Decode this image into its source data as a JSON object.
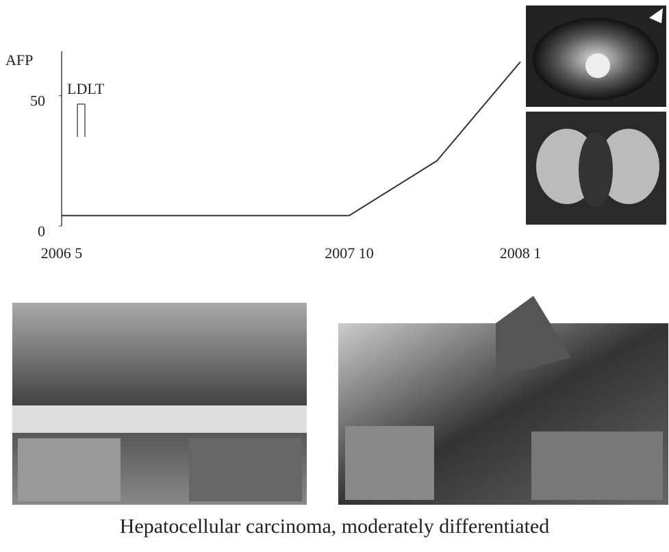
{
  "chart_data": {
    "type": "line",
    "y_label": "AFP",
    "annotation": "LDLT",
    "categories": [
      "2006 5",
      "2007 10",
      null,
      "2008 1"
    ],
    "values": [
      4,
      4,
      25,
      63
    ],
    "color": "#333333",
    "ylim": [
      0,
      67
    ],
    "yticks": [
      0,
      50
    ]
  },
  "caption": "Hepatocellular carcinoma, moderately differentiated"
}
